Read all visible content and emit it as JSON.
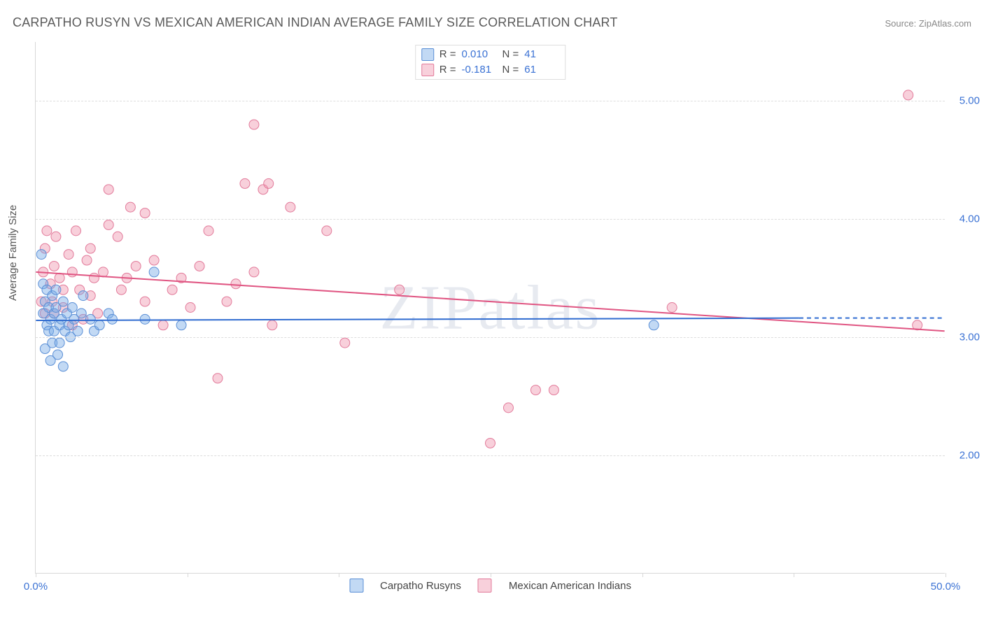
{
  "title": "CARPATHO RUSYN VS MEXICAN AMERICAN INDIAN AVERAGE FAMILY SIZE CORRELATION CHART",
  "source": "Source: ZipAtlas.com",
  "watermark": "ZIPatlas",
  "y_axis_title": "Average Family Size",
  "chart": {
    "type": "scatter",
    "background_color": "#ffffff",
    "grid_color": "#dddddd",
    "axis_color": "#d8d8d8",
    "tick_label_color": "#3b72d4",
    "axis_title_color": "#555555",
    "title_fontsize": 18,
    "axis_title_fontsize": 15,
    "tick_fontsize": 15,
    "legend_fontsize": 15,
    "marker_radius": 7,
    "marker_opacity": 0.55,
    "trend_line_width": 2,
    "xlim": [
      0,
      50
    ],
    "ylim": [
      1.0,
      5.5
    ],
    "ytick_values": [
      2.0,
      3.0,
      4.0,
      5.0
    ],
    "ytick_labels": [
      "2.00",
      "3.00",
      "4.00",
      "5.00"
    ],
    "xtick_values": [
      0,
      8.33,
      16.67,
      25,
      33.33,
      41.67,
      50
    ],
    "xtick_labels": [
      "0.0%",
      "",
      "",
      "",
      "",
      "",
      "50.0%"
    ]
  },
  "series": {
    "a": {
      "label": "Carpatho Rusyns",
      "fill_color": "rgba(120,170,230,0.45)",
      "stroke_color": "#5b8fd6",
      "line_color": "#2f6bd0",
      "r": "0.010",
      "n": "41",
      "trend_start_y": 3.14,
      "trend_end_x": 42,
      "trend_end_y": 3.16,
      "dash_end_x": 50,
      "dash_end_y": 3.16,
      "points": [
        [
          0.3,
          3.7
        ],
        [
          0.4,
          3.45
        ],
        [
          0.4,
          3.2
        ],
        [
          0.5,
          3.3
        ],
        [
          0.5,
          2.9
        ],
        [
          0.6,
          3.1
        ],
        [
          0.6,
          3.4
        ],
        [
          0.7,
          3.25
        ],
        [
          0.7,
          3.05
        ],
        [
          0.8,
          3.15
        ],
        [
          0.8,
          2.8
        ],
        [
          0.9,
          3.35
        ],
        [
          0.9,
          2.95
        ],
        [
          1.0,
          3.2
        ],
        [
          1.0,
          3.05
        ],
        [
          1.1,
          3.25
        ],
        [
          1.1,
          3.4
        ],
        [
          1.2,
          2.85
        ],
        [
          1.3,
          3.1
        ],
        [
          1.3,
          2.95
        ],
        [
          1.4,
          3.15
        ],
        [
          1.5,
          3.3
        ],
        [
          1.5,
          2.75
        ],
        [
          1.6,
          3.05
        ],
        [
          1.7,
          3.2
        ],
        [
          1.8,
          3.1
        ],
        [
          1.9,
          3.0
        ],
        [
          2.0,
          3.25
        ],
        [
          2.1,
          3.15
        ],
        [
          2.3,
          3.05
        ],
        [
          2.5,
          3.2
        ],
        [
          2.6,
          3.35
        ],
        [
          3.0,
          3.15
        ],
        [
          3.2,
          3.05
        ],
        [
          3.5,
          3.1
        ],
        [
          4.0,
          3.2
        ],
        [
          4.2,
          3.15
        ],
        [
          6.5,
          3.55
        ],
        [
          6.0,
          3.15
        ],
        [
          8.0,
          3.1
        ],
        [
          34.0,
          3.1
        ]
      ]
    },
    "b": {
      "label": "Mexican American Indians",
      "fill_color": "rgba(240,150,175,0.45)",
      "stroke_color": "#e27a9a",
      "line_color": "#e05582",
      "r": "-0.181",
      "n": "61",
      "trend_start_y": 3.55,
      "trend_end_x": 50,
      "trend_end_y": 3.05,
      "points": [
        [
          0.3,
          3.3
        ],
        [
          0.4,
          3.55
        ],
        [
          0.5,
          3.75
        ],
        [
          0.5,
          3.2
        ],
        [
          0.6,
          3.9
        ],
        [
          0.8,
          3.45
        ],
        [
          0.9,
          3.3
        ],
        [
          1.0,
          3.6
        ],
        [
          1.0,
          3.2
        ],
        [
          1.1,
          3.85
        ],
        [
          1.3,
          3.5
        ],
        [
          1.5,
          3.4
        ],
        [
          1.5,
          3.25
        ],
        [
          1.8,
          3.7
        ],
        [
          2.0,
          3.55
        ],
        [
          2.0,
          3.1
        ],
        [
          2.2,
          3.9
        ],
        [
          2.4,
          3.4
        ],
        [
          2.6,
          3.15
        ],
        [
          2.8,
          3.65
        ],
        [
          3.0,
          3.75
        ],
        [
          3.0,
          3.35
        ],
        [
          3.2,
          3.5
        ],
        [
          3.4,
          3.2
        ],
        [
          3.7,
          3.55
        ],
        [
          4.0,
          3.95
        ],
        [
          4.0,
          4.25
        ],
        [
          4.5,
          3.85
        ],
        [
          4.7,
          3.4
        ],
        [
          5.0,
          3.5
        ],
        [
          5.2,
          4.1
        ],
        [
          5.5,
          3.6
        ],
        [
          6.0,
          4.05
        ],
        [
          6.0,
          3.3
        ],
        [
          6.5,
          3.65
        ],
        [
          7.0,
          3.1
        ],
        [
          7.5,
          3.4
        ],
        [
          8.0,
          3.5
        ],
        [
          8.5,
          3.25
        ],
        [
          9.0,
          3.6
        ],
        [
          9.5,
          3.9
        ],
        [
          10.0,
          2.65
        ],
        [
          10.5,
          3.3
        ],
        [
          11.0,
          3.45
        ],
        [
          11.5,
          4.3
        ],
        [
          12.0,
          3.55
        ],
        [
          12.0,
          4.8
        ],
        [
          12.5,
          4.25
        ],
        [
          12.8,
          4.3
        ],
        [
          13.0,
          3.1
        ],
        [
          14.0,
          4.1
        ],
        [
          16.0,
          3.9
        ],
        [
          17.0,
          2.95
        ],
        [
          20.0,
          3.4
        ],
        [
          25.0,
          2.1
        ],
        [
          26.0,
          2.4
        ],
        [
          27.5,
          2.55
        ],
        [
          28.5,
          2.55
        ],
        [
          35.0,
          3.25
        ],
        [
          48.0,
          5.05
        ],
        [
          48.5,
          3.1
        ]
      ]
    }
  },
  "stats_box": {
    "r_label": "R =",
    "n_label": "N ="
  }
}
